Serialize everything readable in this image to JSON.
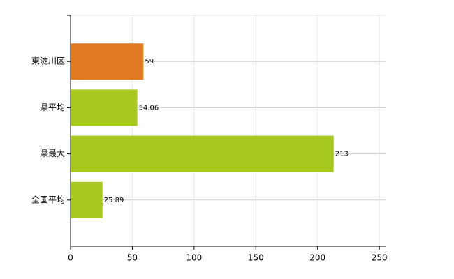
{
  "chart_data": {
    "type": "barh",
    "categories": [
      "東淀川区",
      "県平均",
      "県最大",
      "全国平均"
    ],
    "values": [
      59,
      54.06,
      213,
      25.89
    ],
    "colors": [
      "#e07b24",
      "#a6c81f",
      "#a6c81f",
      "#a6c81f"
    ],
    "xlim": [
      0,
      255
    ],
    "xticks": [
      0,
      50,
      100,
      150,
      200,
      250
    ],
    "grid": true
  }
}
